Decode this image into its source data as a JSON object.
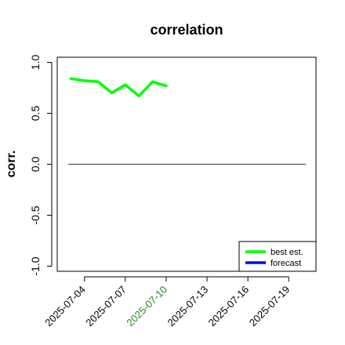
{
  "chart_data": {
    "type": "line",
    "title": "correlation",
    "ylabel": "corr.",
    "xlabel": "",
    "ylim": [
      -1.05,
      1.05
    ],
    "xlim": [
      "2025-07-02",
      "2025-07-21"
    ],
    "y_ticks": [
      "-1.0",
      "-0.5",
      "0.0",
      "0.5",
      "1.0"
    ],
    "y_tick_values": [
      -1.0,
      -0.5,
      0.0,
      0.5,
      1.0
    ],
    "x_ticks": [
      {
        "label": "2025-07-04",
        "date": "2025-07-04",
        "color": "#000000"
      },
      {
        "label": "2025-07-07",
        "date": "2025-07-07",
        "color": "#000000"
      },
      {
        "label": "2025-07-10",
        "date": "2025-07-10",
        "color": "#228B22"
      },
      {
        "label": "2025-07-13",
        "date": "2025-07-13",
        "color": "#000000"
      },
      {
        "label": "2025-07-16",
        "date": "2025-07-16",
        "color": "#000000"
      },
      {
        "label": "2025-07-19",
        "date": "2025-07-19",
        "color": "#000000"
      }
    ],
    "reference_line": {
      "y": 0.0,
      "color": "#555555"
    },
    "series": [
      {
        "name": "best est.",
        "color": "#00FF00",
        "points": [
          {
            "x": "2025-07-03",
            "y": 0.84
          },
          {
            "x": "2025-07-04",
            "y": 0.82
          },
          {
            "x": "2025-07-05",
            "y": 0.81
          },
          {
            "x": "2025-07-06",
            "y": 0.7
          },
          {
            "x": "2025-07-07",
            "y": 0.78
          },
          {
            "x": "2025-07-08",
            "y": 0.67
          },
          {
            "x": "2025-07-09",
            "y": 0.81
          },
          {
            "x": "2025-07-10",
            "y": 0.77
          }
        ]
      },
      {
        "name": "forecast",
        "color": "#0000FF",
        "points": []
      }
    ],
    "legend_position": "bottom-right",
    "grid": false
  }
}
